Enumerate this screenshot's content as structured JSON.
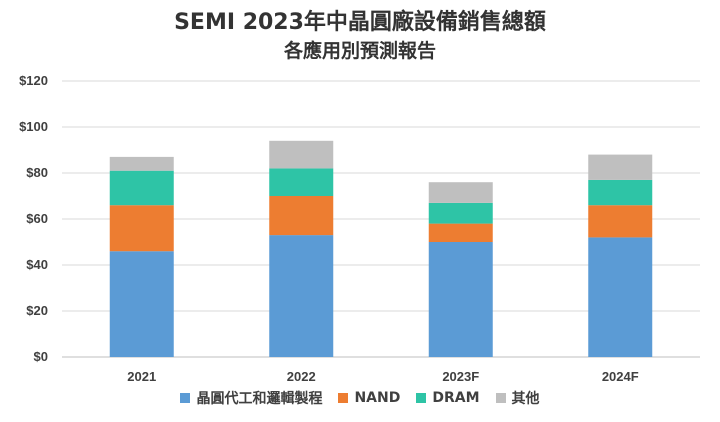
{
  "chart_data": {
    "type": "bar",
    "stacked": true,
    "title": "SEMI 2023年中晶圓廠設備銷售總額",
    "subtitle": "各應用別預測報告",
    "categories": [
      "2021",
      "2022",
      "2023F",
      "2024F"
    ],
    "yticks": [
      "$0",
      "$20",
      "$40",
      "$60",
      "$80",
      "$100",
      "$120"
    ],
    "ylim": [
      0,
      120
    ],
    "grid": true,
    "legend_position": "bottom",
    "series": [
      {
        "name": "晶圓代工和邏輯製程",
        "color": "#5B9BD5",
        "values": [
          46,
          53,
          50,
          52
        ]
      },
      {
        "name": "NAND",
        "color": "#ED7D31",
        "values": [
          20,
          17,
          8,
          14
        ]
      },
      {
        "name": "DRAM",
        "color": "#2EC4A6",
        "values": [
          15,
          12,
          9,
          11
        ]
      },
      {
        "name": "其他",
        "color": "#BFBFBF",
        "values": [
          6,
          12,
          9,
          11
        ]
      }
    ]
  }
}
